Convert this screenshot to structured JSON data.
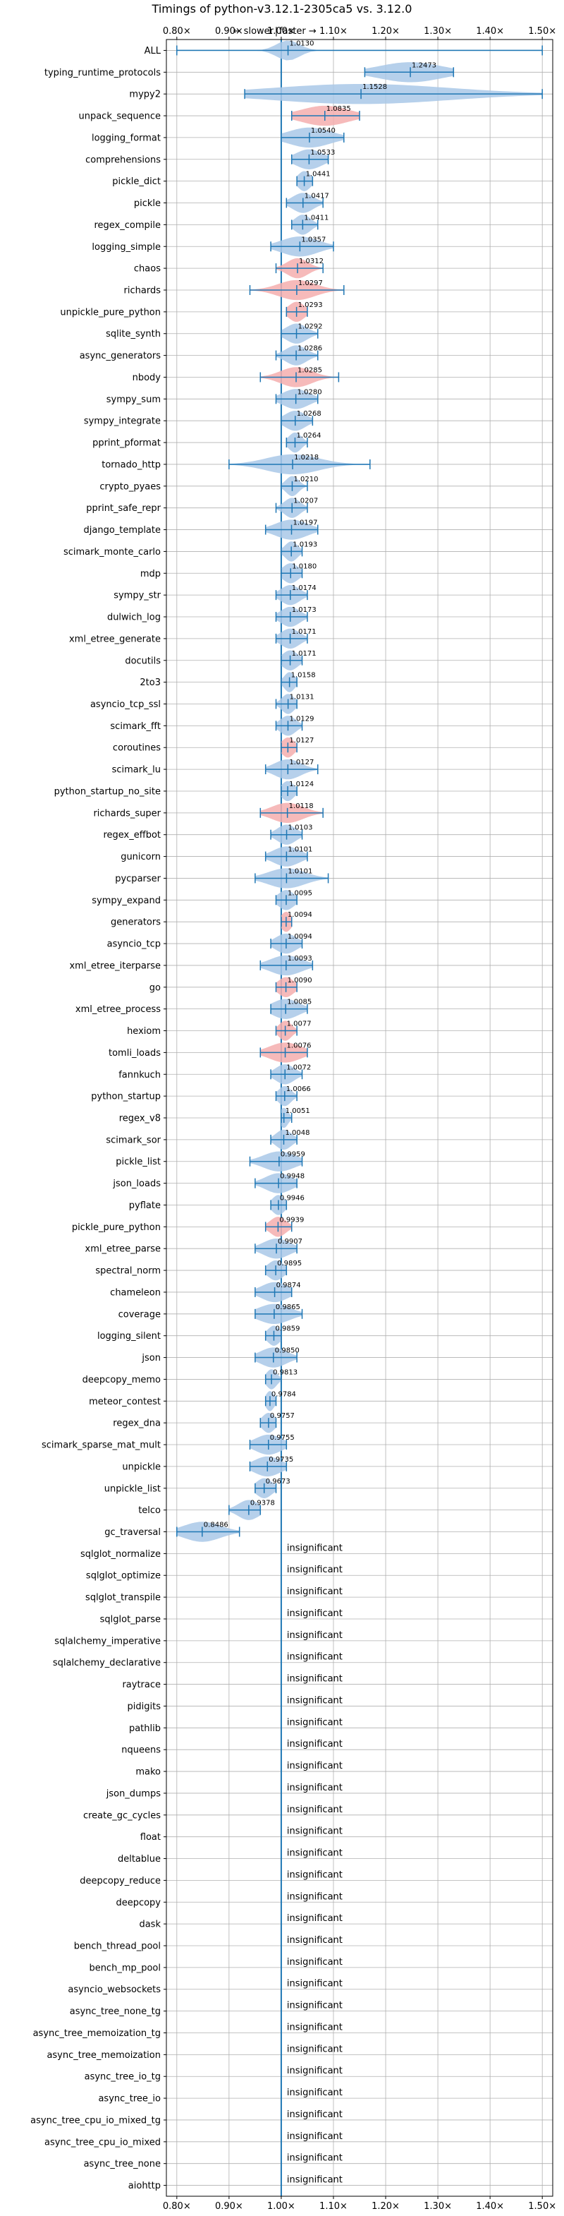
{
  "chart_data": {
    "type": "violin",
    "title": "Timings of python-v3.12.1-2305ca5 vs. 3.12.0",
    "direction_labels": {
      "slower": "← slower",
      "faster": "faster →",
      "separator": "|"
    },
    "xlim": [
      0.78,
      1.52
    ],
    "x_ticks": [
      0.8,
      0.9,
      1.0,
      1.1,
      1.2,
      1.3,
      1.4,
      1.5
    ],
    "x_tick_labels": [
      "0.80×",
      "0.90×",
      "1.00×",
      "1.10×",
      "1.20×",
      "1.30×",
      "1.40×",
      "1.50×"
    ],
    "grid": true,
    "reference_line": 1.0,
    "colors": {
      "significant": "#a9c8e8",
      "regression": "#f4aeae",
      "line": "#1f77b4"
    },
    "significant": [
      {
        "name": "ALL",
        "value": 1.013,
        "label": "1.0130",
        "min": 0.8,
        "max": 1.5,
        "spread": 0.022,
        "color": "blue"
      },
      {
        "name": "typing_runtime_protocols",
        "value": 1.2473,
        "label": "1.2473",
        "min": 1.16,
        "max": 1.33,
        "spread": 0.06,
        "color": "blue"
      },
      {
        "name": "mypy2",
        "value": 1.1528,
        "label": "1.1528",
        "min": 0.93,
        "max": 1.5,
        "spread": 0.17,
        "color": "blue"
      },
      {
        "name": "unpack_sequence",
        "value": 1.0835,
        "label": "1.0835",
        "min": 1.02,
        "max": 1.15,
        "spread": 0.045,
        "color": "red"
      },
      {
        "name": "logging_format",
        "value": 1.054,
        "label": "1.0540",
        "min": 1.0,
        "max": 1.12,
        "spread": 0.04,
        "color": "blue"
      },
      {
        "name": "comprehensions",
        "value": 1.0533,
        "label": "1.0533",
        "min": 1.02,
        "max": 1.09,
        "spread": 0.025,
        "color": "blue"
      },
      {
        "name": "pickle_dict",
        "value": 1.0441,
        "label": "1.0441",
        "min": 1.03,
        "max": 1.06,
        "spread": 0.012,
        "color": "blue"
      },
      {
        "name": "pickle",
        "value": 1.0417,
        "label": "1.0417",
        "min": 1.01,
        "max": 1.08,
        "spread": 0.02,
        "color": "blue"
      },
      {
        "name": "regex_compile",
        "value": 1.0411,
        "label": "1.0411",
        "min": 1.02,
        "max": 1.07,
        "spread": 0.015,
        "color": "blue"
      },
      {
        "name": "logging_simple",
        "value": 1.0357,
        "label": "1.0357",
        "min": 0.98,
        "max": 1.1,
        "spread": 0.035,
        "color": "blue"
      },
      {
        "name": "chaos",
        "value": 1.0312,
        "label": "1.0312",
        "min": 0.99,
        "max": 1.08,
        "spread": 0.02,
        "color": "red"
      },
      {
        "name": "richards",
        "value": 1.0297,
        "label": "1.0297",
        "min": 0.94,
        "max": 1.12,
        "spread": 0.035,
        "color": "red"
      },
      {
        "name": "unpickle_pure_python",
        "value": 1.0293,
        "label": "1.0293",
        "min": 1.01,
        "max": 1.05,
        "spread": 0.015,
        "color": "red"
      },
      {
        "name": "sqlite_synth",
        "value": 1.0292,
        "label": "1.0292",
        "min": 1.0,
        "max": 1.07,
        "spread": 0.02,
        "color": "blue"
      },
      {
        "name": "async_generators",
        "value": 1.0286,
        "label": "1.0286",
        "min": 0.99,
        "max": 1.07,
        "spread": 0.02,
        "color": "blue"
      },
      {
        "name": "nbody",
        "value": 1.0285,
        "label": "1.0285",
        "min": 0.96,
        "max": 1.11,
        "spread": 0.03,
        "color": "red"
      },
      {
        "name": "sympy_sum",
        "value": 1.028,
        "label": "1.0280",
        "min": 0.99,
        "max": 1.07,
        "spread": 0.025,
        "color": "blue"
      },
      {
        "name": "sympy_integrate",
        "value": 1.0268,
        "label": "1.0268",
        "min": 1.0,
        "max": 1.06,
        "spread": 0.02,
        "color": "blue"
      },
      {
        "name": "pprint_pformat",
        "value": 1.0264,
        "label": "1.0264",
        "min": 1.01,
        "max": 1.05,
        "spread": 0.012,
        "color": "blue"
      },
      {
        "name": "tornado_http",
        "value": 1.0218,
        "label": "1.0218",
        "min": 0.9,
        "max": 1.17,
        "spread": 0.05,
        "color": "blue"
      },
      {
        "name": "crypto_pyaes",
        "value": 1.021,
        "label": "1.0210",
        "min": 1.0,
        "max": 1.05,
        "spread": 0.012,
        "color": "blue"
      },
      {
        "name": "pprint_safe_repr",
        "value": 1.0207,
        "label": "1.0207",
        "min": 0.99,
        "max": 1.05,
        "spread": 0.015,
        "color": "blue"
      },
      {
        "name": "django_template",
        "value": 1.0197,
        "label": "1.0197",
        "min": 0.97,
        "max": 1.07,
        "spread": 0.03,
        "color": "blue"
      },
      {
        "name": "scimark_monte_carlo",
        "value": 1.0193,
        "label": "1.0193",
        "min": 1.0,
        "max": 1.04,
        "spread": 0.012,
        "color": "blue"
      },
      {
        "name": "mdp",
        "value": 1.018,
        "label": "1.0180",
        "min": 1.0,
        "max": 1.04,
        "spread": 0.015,
        "color": "blue"
      },
      {
        "name": "sympy_str",
        "value": 1.0174,
        "label": "1.0174",
        "min": 0.99,
        "max": 1.05,
        "spread": 0.018,
        "color": "blue"
      },
      {
        "name": "dulwich_log",
        "value": 1.0173,
        "label": "1.0173",
        "min": 0.99,
        "max": 1.05,
        "spread": 0.018,
        "color": "blue"
      },
      {
        "name": "xml_etree_generate",
        "value": 1.0171,
        "label": "1.0171",
        "min": 0.99,
        "max": 1.05,
        "spread": 0.018,
        "color": "blue"
      },
      {
        "name": "docutils",
        "value": 1.0171,
        "label": "1.0171",
        "min": 1.0,
        "max": 1.04,
        "spread": 0.015,
        "color": "blue"
      },
      {
        "name": "2to3",
        "value": 1.0158,
        "label": "1.0158",
        "min": 1.0,
        "max": 1.03,
        "spread": 0.01,
        "color": "blue"
      },
      {
        "name": "asyncio_tcp_ssl",
        "value": 1.0131,
        "label": "1.0131",
        "min": 0.99,
        "max": 1.03,
        "spread": 0.012,
        "color": "blue"
      },
      {
        "name": "scimark_fft",
        "value": 1.0129,
        "label": "1.0129",
        "min": 0.99,
        "max": 1.04,
        "spread": 0.015,
        "color": "blue"
      },
      {
        "name": "coroutines",
        "value": 1.0127,
        "label": "1.0127",
        "min": 1.0,
        "max": 1.03,
        "spread": 0.012,
        "color": "red"
      },
      {
        "name": "scimark_lu",
        "value": 1.0127,
        "label": "1.0127",
        "min": 0.97,
        "max": 1.07,
        "spread": 0.025,
        "color": "blue"
      },
      {
        "name": "python_startup_no_site",
        "value": 1.0124,
        "label": "1.0124",
        "min": 1.0,
        "max": 1.03,
        "spread": 0.012,
        "color": "blue"
      },
      {
        "name": "richards_super",
        "value": 1.0118,
        "label": "1.0118",
        "min": 0.96,
        "max": 1.08,
        "spread": 0.03,
        "color": "red"
      },
      {
        "name": "regex_effbot",
        "value": 1.0103,
        "label": "1.0103",
        "min": 0.98,
        "max": 1.04,
        "spread": 0.018,
        "color": "blue"
      },
      {
        "name": "gunicorn",
        "value": 1.0101,
        "label": "1.0101",
        "min": 0.97,
        "max": 1.05,
        "spread": 0.025,
        "color": "blue"
      },
      {
        "name": "pycparser",
        "value": 1.0101,
        "label": "1.0101",
        "min": 0.95,
        "max": 1.09,
        "spread": 0.035,
        "color": "blue"
      },
      {
        "name": "sympy_expand",
        "value": 1.0095,
        "label": "1.0095",
        "min": 0.99,
        "max": 1.03,
        "spread": 0.015,
        "color": "blue"
      },
      {
        "name": "generators",
        "value": 1.0094,
        "label": "1.0094",
        "min": 1.0,
        "max": 1.02,
        "spread": 0.01,
        "color": "red"
      },
      {
        "name": "asyncio_tcp",
        "value": 1.0094,
        "label": "1.0094",
        "min": 0.98,
        "max": 1.04,
        "spread": 0.02,
        "color": "blue"
      },
      {
        "name": "xml_etree_iterparse",
        "value": 1.0093,
        "label": "1.0093",
        "min": 0.96,
        "max": 1.06,
        "spread": 0.03,
        "color": "blue"
      },
      {
        "name": "go",
        "value": 1.009,
        "label": "1.0090",
        "min": 0.99,
        "max": 1.03,
        "spread": 0.015,
        "color": "red"
      },
      {
        "name": "xml_etree_process",
        "value": 1.0085,
        "label": "1.0085",
        "min": 0.98,
        "max": 1.05,
        "spread": 0.025,
        "color": "blue"
      },
      {
        "name": "hexiom",
        "value": 1.0077,
        "label": "1.0077",
        "min": 0.99,
        "max": 1.03,
        "spread": 0.012,
        "color": "red"
      },
      {
        "name": "tomli_loads",
        "value": 1.0076,
        "label": "1.0076",
        "min": 0.96,
        "max": 1.05,
        "spread": 0.03,
        "color": "red"
      },
      {
        "name": "fannkuch",
        "value": 1.0072,
        "label": "1.0072",
        "min": 0.98,
        "max": 1.04,
        "spread": 0.018,
        "color": "blue"
      },
      {
        "name": "python_startup",
        "value": 1.0066,
        "label": "1.0066",
        "min": 0.99,
        "max": 1.03,
        "spread": 0.012,
        "color": "blue"
      },
      {
        "name": "regex_v8",
        "value": 1.0051,
        "label": "1.0051",
        "min": 1.0,
        "max": 1.02,
        "spread": 0.008,
        "color": "blue"
      },
      {
        "name": "scimark_sor",
        "value": 1.0048,
        "label": "1.0048",
        "min": 0.98,
        "max": 1.03,
        "spread": 0.015,
        "color": "blue"
      },
      {
        "name": "pickle_list",
        "value": 0.9959,
        "label": "0.9959",
        "min": 0.94,
        "max": 1.04,
        "spread": 0.03,
        "color": "blue"
      },
      {
        "name": "json_loads",
        "value": 0.9948,
        "label": "0.9948",
        "min": 0.95,
        "max": 1.03,
        "spread": 0.025,
        "color": "blue"
      },
      {
        "name": "pyflate",
        "value": 0.9946,
        "label": "0.9946",
        "min": 0.98,
        "max": 1.01,
        "spread": 0.012,
        "color": "blue"
      },
      {
        "name": "pickle_pure_python",
        "value": 0.9939,
        "label": "0.9939",
        "min": 0.97,
        "max": 1.02,
        "spread": 0.015,
        "color": "red"
      },
      {
        "name": "xml_etree_parse",
        "value": 0.9907,
        "label": "0.9907",
        "min": 0.95,
        "max": 1.03,
        "spread": 0.025,
        "color": "blue"
      },
      {
        "name": "spectral_norm",
        "value": 0.9895,
        "label": "0.9895",
        "min": 0.97,
        "max": 1.01,
        "spread": 0.015,
        "color": "blue"
      },
      {
        "name": "chameleon",
        "value": 0.9874,
        "label": "0.9874",
        "min": 0.95,
        "max": 1.02,
        "spread": 0.025,
        "color": "blue"
      },
      {
        "name": "coverage",
        "value": 0.9865,
        "label": "0.9865",
        "min": 0.95,
        "max": 1.04,
        "spread": 0.03,
        "color": "blue"
      },
      {
        "name": "logging_silent",
        "value": 0.9859,
        "label": "0.9859",
        "min": 0.97,
        "max": 1.0,
        "spread": 0.012,
        "color": "blue"
      },
      {
        "name": "json",
        "value": 0.985,
        "label": "0.9850",
        "min": 0.95,
        "max": 1.03,
        "spread": 0.025,
        "color": "blue"
      },
      {
        "name": "deepcopy_memo",
        "value": 0.9813,
        "label": "0.9813",
        "min": 0.97,
        "max": 1.0,
        "spread": 0.01,
        "color": "blue"
      },
      {
        "name": "meteor_contest",
        "value": 0.9784,
        "label": "0.9784",
        "min": 0.97,
        "max": 0.99,
        "spread": 0.008,
        "color": "blue"
      },
      {
        "name": "regex_dna",
        "value": 0.9757,
        "label": "0.9757",
        "min": 0.96,
        "max": 0.99,
        "spread": 0.012,
        "color": "blue"
      },
      {
        "name": "scimark_sparse_mat_mult",
        "value": 0.9755,
        "label": "0.9755",
        "min": 0.94,
        "max": 1.01,
        "spread": 0.025,
        "color": "blue"
      },
      {
        "name": "unpickle",
        "value": 0.9735,
        "label": "0.9735",
        "min": 0.94,
        "max": 1.01,
        "spread": 0.025,
        "color": "blue"
      },
      {
        "name": "unpickle_list",
        "value": 0.9673,
        "label": "0.9673",
        "min": 0.95,
        "max": 0.99,
        "spread": 0.015,
        "color": "blue"
      },
      {
        "name": "telco",
        "value": 0.9378,
        "label": "0.9378",
        "min": 0.9,
        "max": 0.96,
        "spread": 0.02,
        "color": "blue"
      },
      {
        "name": "gc_traversal",
        "value": 0.8486,
        "label": "0.8486",
        "min": 0.8,
        "max": 0.92,
        "spread": 0.035,
        "color": "blue"
      }
    ],
    "insignificant_text": "insignificant",
    "insignificant": [
      "sqlglot_normalize",
      "sqlglot_optimize",
      "sqlglot_transpile",
      "sqlglot_parse",
      "sqlalchemy_imperative",
      "sqlalchemy_declarative",
      "raytrace",
      "pidigits",
      "pathlib",
      "nqueens",
      "mako",
      "json_dumps",
      "create_gc_cycles",
      "float",
      "deltablue",
      "deepcopy_reduce",
      "deepcopy",
      "dask",
      "bench_thread_pool",
      "bench_mp_pool",
      "asyncio_websockets",
      "async_tree_none_tg",
      "async_tree_memoization_tg",
      "async_tree_memoization",
      "async_tree_io_tg",
      "async_tree_io",
      "async_tree_cpu_io_mixed_tg",
      "async_tree_cpu_io_mixed",
      "async_tree_none",
      "aiohttp"
    ]
  }
}
